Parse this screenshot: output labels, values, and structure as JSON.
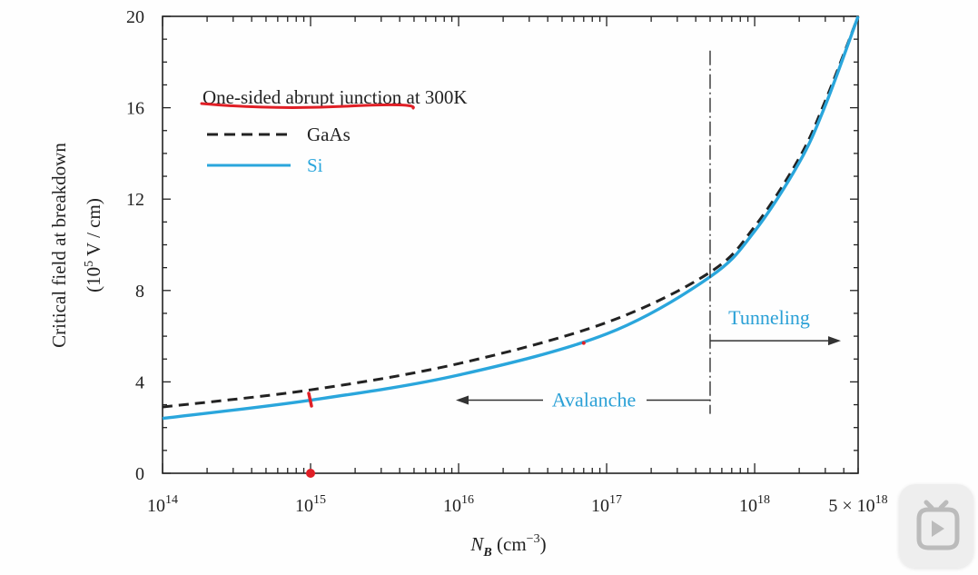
{
  "chart_data": {
    "type": "line",
    "xscale": "log",
    "xlim": [
      100000000000000.0,
      5e+18
    ],
    "ylim": [
      0,
      20
    ],
    "yticks": [
      0,
      4,
      8,
      12,
      16,
      20
    ],
    "xtick_labels": [
      {
        "value": 100000000000000.0,
        "base": "10",
        "exp": "14"
      },
      {
        "value": 1000000000000000.0,
        "base": "10",
        "exp": "15"
      },
      {
        "value": 1e+16,
        "base": "10",
        "exp": "16"
      },
      {
        "value": 1e+17,
        "base": "10",
        "exp": "17"
      },
      {
        "value": 1e+18,
        "base": "10",
        "exp": "18"
      },
      {
        "value": 5e+18,
        "base": "5 × 10",
        "exp": "18"
      }
    ],
    "ylabel_line1": "Critical field at breakdown",
    "ylabel_line2_prefix": "(10",
    "ylabel_line2_exp": "5",
    "ylabel_line2_suffix": " V / cm)",
    "xlabel_var": "N",
    "xlabel_sub": "B",
    "xlabel_unit": " (cm",
    "xlabel_exp": "−3",
    "xlabel_close": ")",
    "legend_title": "One-sided abrupt junction at 300K",
    "series": [
      {
        "name": "GaAs",
        "color": "#222222",
        "dash": true,
        "x": [
          100000000000000.0,
          1000000000000000.0,
          1e+16,
          1e+17,
          5e+17,
          1e+18,
          2e+18,
          3e+18,
          5e+18
        ],
        "y": [
          2.9,
          3.65,
          4.8,
          6.6,
          8.8,
          10.8,
          13.8,
          16.3,
          20
        ]
      },
      {
        "name": "Si",
        "color": "#2aa6dc",
        "dash": false,
        "x": [
          100000000000000.0,
          1000000000000000.0,
          1e+16,
          1e+17,
          5e+17,
          1e+18,
          2e+18,
          3e+18,
          5e+18
        ],
        "y": [
          2.4,
          3.2,
          4.3,
          6.1,
          8.6,
          10.6,
          13.6,
          16.1,
          20
        ]
      }
    ],
    "divider_x": 5e+17,
    "avalanche_label": "Avalanche",
    "tunneling_label": "Tunneling"
  },
  "colors": {
    "accent_line": "#2aa6dc",
    "annotation": "#2aa0d6",
    "underline_mark": "#e01f26",
    "axis": "#222222"
  },
  "player_icon": "play-icon"
}
